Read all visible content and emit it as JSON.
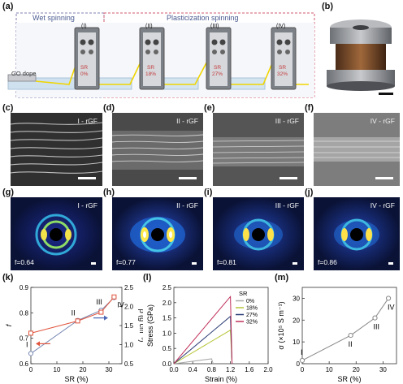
{
  "panel_labels": {
    "a": "(a)",
    "b": "(b)",
    "c": "(c)",
    "d": "(d)",
    "e": "(e)",
    "f": "(f)",
    "g": "(g)",
    "h": "(h)",
    "i": "(i)",
    "j": "(j)",
    "k": "(k)",
    "l": "(l)",
    "m": "(m)"
  },
  "schematic": {
    "wet_spinning": "Wet spinning",
    "plasticization_spinning": "Plasticization spinning",
    "dope": "GO dope",
    "baths": [
      {
        "roman": "(I)",
        "sr_label": "SR",
        "sr_value": "0%"
      },
      {
        "roman": "(II)",
        "sr_label": "SR",
        "sr_value": "18%"
      },
      {
        "roman": "(III)",
        "sr_label": "SR",
        "sr_value": "27%"
      },
      {
        "roman": "(IV)",
        "sr_label": "SR",
        "sr_value": "32%"
      }
    ]
  },
  "sem": [
    {
      "tag": "I - rGF"
    },
    {
      "tag": "II - rGF"
    },
    {
      "tag": "III - rGF"
    },
    {
      "tag": "IV - rGF"
    }
  ],
  "saxs": [
    {
      "tag": "I - rGF",
      "f": "f=0.64"
    },
    {
      "tag": "II - rGF",
      "f": "f=0.77"
    },
    {
      "tag": "III - rGF",
      "f": "f=0.81"
    },
    {
      "tag": "IV - rGF",
      "f": "f=0.86"
    }
  ],
  "chart_data": [
    {
      "type": "line",
      "panel": "k",
      "xlabel": "SR (%)",
      "ylabel_left": "f",
      "ylabel_right": "ρ (g cm⁻³)",
      "xlim": [
        0,
        35
      ],
      "ylim_left": [
        0.6,
        0.9
      ],
      "ylim_right": [
        0.5,
        2.5
      ],
      "x_ticks": [
        "0",
        "10",
        "20",
        "30"
      ],
      "y_ticks_left": [
        "0.6",
        "0.7",
        "0.8",
        "0.9"
      ],
      "y_ticks_right": [
        "0.5",
        "1.0",
        "1.5",
        "2.0",
        "2.5"
      ],
      "point_labels": [
        "I",
        "II",
        "III",
        "IV"
      ],
      "series": [
        {
          "axis": "left",
          "color": "#7b8bb5",
          "x": [
            0,
            18,
            27,
            32
          ],
          "values": [
            0.64,
            0.77,
            0.81,
            0.86
          ]
        },
        {
          "axis": "right",
          "color": "#e0533b",
          "x": [
            0,
            18,
            27,
            32
          ],
          "values": [
            1.3,
            1.62,
            1.85,
            2.25
          ]
        }
      ]
    },
    {
      "type": "line",
      "panel": "l",
      "xlabel": "Strain (%)",
      "ylabel": "Stress (GPa)",
      "xlim": [
        0,
        2.0
      ],
      "ylim": [
        0,
        2.5
      ],
      "x_ticks": [
        "0.0",
        "0.4",
        "0.8",
        "1.2",
        "1.6",
        "2.0"
      ],
      "y_ticks": [
        "0.0",
        "0.5",
        "1.0",
        "1.5",
        "2.0",
        "2.5"
      ],
      "legend_title": "SR",
      "legend_position": "top-right",
      "series": [
        {
          "name": "0%",
          "color": "#a8a8a8",
          "x": [
            0,
            0.8
          ],
          "values": [
            0,
            0.16
          ]
        },
        {
          "name": "18%",
          "color": "#b8c53a",
          "x": [
            0,
            1.2
          ],
          "values": [
            0,
            1.1
          ]
        },
        {
          "name": "27%",
          "color": "#2c3d76",
          "x": [
            0,
            1.2
          ],
          "values": [
            0,
            1.55
          ]
        },
        {
          "name": "32%",
          "color": "#c0305a",
          "x": [
            0,
            1.2
          ],
          "values": [
            0,
            2.2
          ]
        }
      ]
    },
    {
      "type": "line",
      "panel": "m",
      "xlabel": "SR (%)",
      "ylabel": "σ (×10⁵ S m⁻¹)",
      "xlim": [
        0,
        35
      ],
      "ylim": [
        0,
        35
      ],
      "x_ticks": [
        "0",
        "10",
        "20",
        "30"
      ],
      "y_ticks": [
        "0",
        "10",
        "20",
        "30"
      ],
      "point_labels": [
        "I",
        "II",
        "III",
        "IV"
      ],
      "series": [
        {
          "color": "#888888",
          "x": [
            0,
            18,
            27,
            32
          ],
          "values": [
            1.5,
            13,
            21,
            30
          ]
        }
      ]
    }
  ]
}
